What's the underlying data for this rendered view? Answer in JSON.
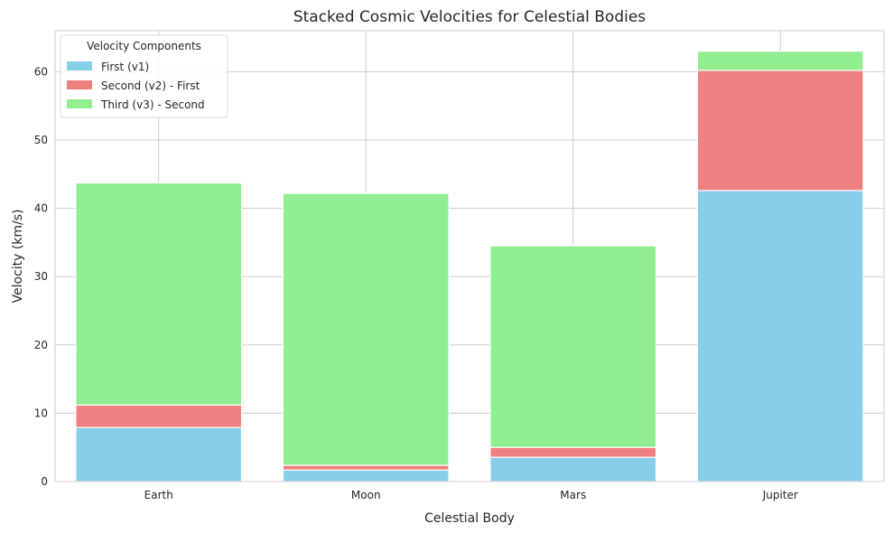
{
  "chart_data": {
    "type": "bar",
    "stacked": true,
    "title": "Stacked Cosmic Velocities for Celestial Bodies",
    "xlabel": "Celestial Body",
    "ylabel": "Velocity (km/s)",
    "categories": [
      "Earth",
      "Moon",
      "Mars",
      "Jupiter"
    ],
    "ylim": [
      0,
      66
    ],
    "yticks": [
      0,
      10,
      20,
      30,
      40,
      50,
      60
    ],
    "grid": true,
    "legend": {
      "title": "Velocity Components",
      "placement": "top-left"
    },
    "series": [
      {
        "name": "First (v1)",
        "color": "#87ceeb",
        "values": [
          7.9,
          1.68,
          3.55,
          42.6
        ]
      },
      {
        "name": "Second (v2) - First",
        "color": "#f08080",
        "values": [
          3.3,
          0.7,
          1.45,
          17.6
        ]
      },
      {
        "name": "Third (v3) - Second",
        "color": "#90ee90",
        "values": [
          32.5,
          39.8,
          29.5,
          2.8
        ]
      }
    ]
  }
}
